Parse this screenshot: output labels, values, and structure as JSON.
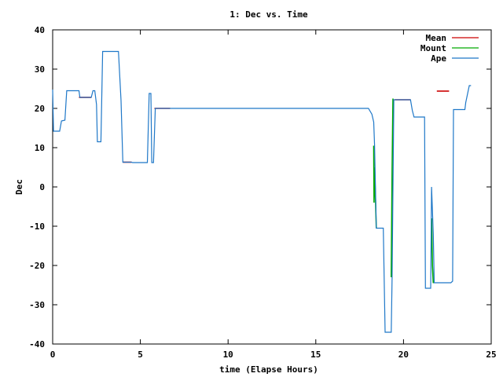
{
  "chart_data": {
    "type": "line",
    "title": "1: Dec vs. Time",
    "xlabel": "time (Elapse Hours)",
    "ylabel": "Dec",
    "xlim": [
      0,
      25
    ],
    "ylim": [
      -40,
      40
    ],
    "xticks": [
      0,
      5,
      10,
      15,
      20,
      25
    ],
    "yticks": [
      -40,
      -30,
      -20,
      -10,
      0,
      10,
      20,
      30,
      40
    ],
    "grid": false,
    "legend_position": "top-right",
    "series": [
      {
        "name": "Mean",
        "color": "#cc0000",
        "segments": [
          [
            [
              1.5,
              22.8
            ],
            [
              2.2,
              22.8
            ]
          ],
          [
            [
              4.0,
              6.3
            ],
            [
              4.5,
              6.3
            ]
          ],
          [
            [
              5.8,
              20.0
            ],
            [
              6.7,
              20.0
            ]
          ],
          [
            [
              19.5,
              22.2
            ],
            [
              20.4,
              22.2
            ]
          ],
          [
            [
              21.9,
              24.4
            ],
            [
              22.6,
              24.4
            ]
          ]
        ]
      },
      {
        "name": "Mount",
        "color": "#00aa00",
        "segments": [
          [
            [
              18.3,
              10.5
            ],
            [
              18.32,
              -4.0
            ],
            [
              18.35,
              5.0
            ],
            [
              18.45,
              -10.5
            ]
          ],
          [
            [
              19.3,
              -23.0
            ],
            [
              19.35,
              4.0
            ],
            [
              19.4,
              22.5
            ]
          ],
          [
            [
              21.6,
              -8.0
            ],
            [
              21.65,
              -20.0
            ],
            [
              21.7,
              -24.5
            ]
          ]
        ]
      },
      {
        "name": "Ape",
        "color": "#1f78c8",
        "points": [
          [
            0,
            24.8
          ],
          [
            0.05,
            14.2
          ],
          [
            0.4,
            14.2
          ],
          [
            0.5,
            16.8
          ],
          [
            0.7,
            17.0
          ],
          [
            0.8,
            24.5
          ],
          [
            1.5,
            24.5
          ],
          [
            1.55,
            22.8
          ],
          [
            2.2,
            22.8
          ],
          [
            2.3,
            24.5
          ],
          [
            2.4,
            24.5
          ],
          [
            2.5,
            21.0
          ],
          [
            2.55,
            11.5
          ],
          [
            2.75,
            11.5
          ],
          [
            2.85,
            34.5
          ],
          [
            3.75,
            34.5
          ],
          [
            3.9,
            22.0
          ],
          [
            4.0,
            6.3
          ],
          [
            4.5,
            6.3
          ],
          [
            4.55,
            6.2
          ],
          [
            5.4,
            6.2
          ],
          [
            5.5,
            23.8
          ],
          [
            5.6,
            23.8
          ],
          [
            5.65,
            6.2
          ],
          [
            5.75,
            6.2
          ],
          [
            5.85,
            20.0
          ],
          [
            6.7,
            20.0
          ],
          [
            18.0,
            20.0
          ],
          [
            18.2,
            18.5
          ],
          [
            18.3,
            16.5
          ],
          [
            18.35,
            10.5
          ],
          [
            18.45,
            -10.5
          ],
          [
            18.85,
            -10.5
          ],
          [
            18.95,
            -37.0
          ],
          [
            19.3,
            -37.0
          ],
          [
            19.35,
            -23.0
          ],
          [
            19.45,
            22.2
          ],
          [
            20.4,
            22.2
          ],
          [
            20.5,
            19.5
          ],
          [
            20.6,
            17.8
          ],
          [
            21.2,
            17.8
          ],
          [
            21.25,
            -25.8
          ],
          [
            21.55,
            -25.8
          ],
          [
            21.6,
            0
          ],
          [
            21.7,
            -12.0
          ],
          [
            21.75,
            -24.4
          ],
          [
            22.7,
            -24.4
          ],
          [
            22.8,
            -24.0
          ],
          [
            22.85,
            19.7
          ],
          [
            23.5,
            19.7
          ],
          [
            23.55,
            21.5
          ],
          [
            23.75,
            25.8
          ],
          [
            23.85,
            25.8
          ]
        ]
      }
    ]
  }
}
